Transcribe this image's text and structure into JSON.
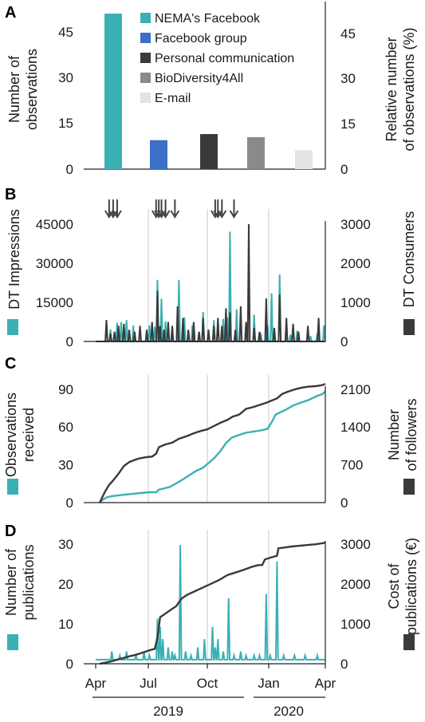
{
  "colors": {
    "teal": "#3bb0b4",
    "dark": "#3a3a3a",
    "blue": "#3b6fc8",
    "gray": "#8a8a8a",
    "light": "#e3e3e3",
    "grid": "#c9c9c9"
  },
  "x_axis": {
    "month_ticks": [
      "Apr",
      "Jul",
      "Oct",
      "Jan",
      "Apr"
    ],
    "years": [
      "2019",
      "2020"
    ]
  },
  "chart_data": [
    {
      "panel": "A",
      "type": "bar",
      "categories": [
        "NEMA's Facebook",
        "Facebook group",
        "Personal communication",
        "BioDiversity4All",
        "E-mail"
      ],
      "values": [
        51,
        9.5,
        11.5,
        10.5,
        6.2
      ],
      "colors": [
        "#3bb0b4",
        "#3b6fc8",
        "#3a3a3a",
        "#8a8a8a",
        "#e3e3e3"
      ],
      "ylabel": "Number of observations",
      "ylabel_right": "Relative number of observations (%)",
      "yticks": [
        "0",
        "15",
        "30",
        "45"
      ],
      "yticks_right": [
        "0",
        "15",
        "30",
        "45"
      ],
      "ylim": [
        0,
        51
      ],
      "legend_position": "top-right"
    },
    {
      "panel": "B",
      "type": "line",
      "ylabel": "DT Impressions",
      "ylabel_right": "DT Consumers",
      "yticks": [
        "0",
        "15000",
        "30000",
        "45000"
      ],
      "yticks_right": [
        "0",
        "1000",
        "2000",
        "3000"
      ],
      "ylim": [
        0,
        48000
      ],
      "ylim_right": [
        0,
        3200
      ],
      "arrows_days": [
        10,
        13,
        16,
        45,
        47,
        49,
        52,
        59,
        89,
        91,
        94,
        103
      ],
      "series": [
        {
          "color": "#3bb0b4",
          "axis": "left",
          "spikes": [
            [
              11,
              4500
            ],
            [
              16,
              7000
            ],
            [
              19,
              7200
            ],
            [
              23,
              8000
            ],
            [
              28,
              6000
            ],
            [
              40,
              6000
            ],
            [
              44,
              5500
            ],
            [
              46,
              23000
            ],
            [
              49,
              16000
            ],
            [
              52,
              7500
            ],
            [
              57,
              5000
            ],
            [
              62,
              23000
            ],
            [
              66,
              9000
            ],
            [
              72,
              6000
            ],
            [
              80,
              11000
            ],
            [
              88,
              8000
            ],
            [
              95,
              8500
            ],
            [
              98,
              9000
            ],
            [
              100,
              41000
            ],
            [
              105,
              12000
            ],
            [
              112,
              7000
            ],
            [
              118,
              10000
            ],
            [
              123,
              3000
            ],
            [
              128,
              6000
            ],
            [
              131,
              18000
            ],
            [
              137,
              25000
            ],
            [
              142,
              4000
            ],
            [
              145,
              2500
            ],
            [
              150,
              4000
            ],
            [
              160,
              2000
            ],
            [
              165,
              3000
            ],
            [
              170,
              6000
            ]
          ]
        },
        {
          "color": "#3a3a3a",
          "axis": "right",
          "spikes": [
            [
              8,
              550
            ],
            [
              11,
              200
            ],
            [
              14,
              250
            ],
            [
              17,
              400
            ],
            [
              21,
              450
            ],
            [
              25,
              300
            ],
            [
              29,
              250
            ],
            [
              33,
              400
            ],
            [
              38,
              300
            ],
            [
              42,
              500
            ],
            [
              46,
              1300
            ],
            [
              48,
              400
            ],
            [
              51,
              300
            ],
            [
              54,
              500
            ],
            [
              57,
              400
            ],
            [
              61,
              900
            ],
            [
              65,
              600
            ],
            [
              69,
              300
            ],
            [
              73,
              500
            ],
            [
              77,
              250
            ],
            [
              80,
              600
            ],
            [
              84,
              300
            ],
            [
              88,
              400
            ],
            [
              91,
              600
            ],
            [
              94,
              400
            ],
            [
              97,
              850
            ],
            [
              100,
              750
            ],
            [
              104,
              300
            ],
            [
              108,
              900
            ],
            [
              112,
              500
            ],
            [
              114,
              3000
            ],
            [
              118,
              350
            ],
            [
              122,
              250
            ],
            [
              127,
              1100
            ],
            [
              133,
              350
            ],
            [
              137,
              1200
            ],
            [
              142,
              600
            ],
            [
              147,
              450
            ],
            [
              151,
              250
            ],
            [
              158,
              400
            ],
            [
              166,
              600
            ]
          ]
        }
      ]
    },
    {
      "panel": "C",
      "type": "line",
      "ylabel": "Observations received",
      "ylabel_right": "Number of followers",
      "yticks": [
        "0",
        "30",
        "60",
        "90"
      ],
      "yticks_right": [
        "0",
        "700",
        "1400",
        "2100"
      ],
      "ylim": [
        0,
        95
      ],
      "ylim_right": [
        0,
        2217
      ],
      "series": [
        {
          "color": "#3bb0b4",
          "axis": "left",
          "points": [
            [
              3,
              0
            ],
            [
              5,
              2
            ],
            [
              8,
              4
            ],
            [
              12,
              5
            ],
            [
              20,
              6
            ],
            [
              30,
              7
            ],
            [
              40,
              8
            ],
            [
              45,
              8
            ],
            [
              47,
              10
            ],
            [
              55,
              12
            ],
            [
              62,
              16
            ],
            [
              68,
              20
            ],
            [
              74,
              24
            ],
            [
              80,
              27
            ],
            [
              88,
              34
            ],
            [
              93,
              40
            ],
            [
              97,
              46
            ],
            [
              101,
              50
            ],
            [
              106,
              52
            ],
            [
              112,
              54
            ],
            [
              118,
              55
            ],
            [
              124,
              56
            ],
            [
              128,
              57
            ],
            [
              131,
              62
            ],
            [
              134,
              68
            ],
            [
              138,
              70
            ],
            [
              142,
              72
            ],
            [
              147,
              75
            ],
            [
              152,
              77
            ],
            [
              158,
              79
            ],
            [
              164,
              82
            ],
            [
              169,
              84
            ],
            [
              171,
              86
            ]
          ]
        },
        {
          "color": "#3a3a3a",
          "axis": "right",
          "points": [
            [
              3,
              0
            ],
            [
              5,
              100
            ],
            [
              7,
              200
            ],
            [
              10,
              320
            ],
            [
              13,
              400
            ],
            [
              17,
              520
            ],
            [
              21,
              660
            ],
            [
              25,
              730
            ],
            [
              29,
              770
            ],
            [
              33,
              800
            ],
            [
              38,
              820
            ],
            [
              42,
              830
            ],
            [
              45,
              880
            ],
            [
              47,
              1000
            ],
            [
              52,
              1050
            ],
            [
              57,
              1080
            ],
            [
              62,
              1150
            ],
            [
              68,
              1200
            ],
            [
              73,
              1250
            ],
            [
              78,
              1290
            ],
            [
              83,
              1320
            ],
            [
              88,
              1380
            ],
            [
              93,
              1440
            ],
            [
              98,
              1490
            ],
            [
              102,
              1550
            ],
            [
              107,
              1590
            ],
            [
              112,
              1690
            ],
            [
              117,
              1720
            ],
            [
              122,
              1760
            ],
            [
              127,
              1800
            ],
            [
              131,
              1840
            ],
            [
              135,
              1880
            ],
            [
              139,
              1960
            ],
            [
              143,
              2000
            ],
            [
              148,
              2040
            ],
            [
              153,
              2070
            ],
            [
              158,
              2090
            ],
            [
              164,
              2100
            ],
            [
              169,
              2120
            ],
            [
              171,
              2140
            ]
          ]
        }
      ]
    },
    {
      "panel": "D",
      "type": "line",
      "ylabel": "Number of publications",
      "ylabel_right": "Cost of publications (€)",
      "yticks": [
        "0",
        "10",
        "20",
        "30"
      ],
      "yticks_right": [
        "0",
        "1000",
        "2000",
        "3000"
      ],
      "ylim": [
        0,
        30
      ],
      "ylim_right": [
        0,
        3300
      ],
      "series": [
        {
          "color": "#3bb0b4",
          "axis": "left",
          "spikes": [
            [
              12,
              3
            ],
            [
              18,
              2
            ],
            [
              23,
              3
            ],
            [
              30,
              2
            ],
            [
              36,
              3
            ],
            [
              40,
              2
            ],
            [
              46,
              11
            ],
            [
              48,
              9
            ],
            [
              50,
              6
            ],
            [
              54,
              4
            ],
            [
              57,
              3
            ],
            [
              59,
              2
            ],
            [
              63,
              29
            ],
            [
              67,
              3
            ],
            [
              71,
              2
            ],
            [
              76,
              4
            ],
            [
              81,
              6
            ],
            [
              87,
              9
            ],
            [
              89,
              4
            ],
            [
              91,
              6
            ],
            [
              95,
              3
            ],
            [
              99,
              16
            ],
            [
              103,
              2
            ],
            [
              108,
              3
            ],
            [
              112,
              2
            ],
            [
              118,
              2
            ],
            [
              122,
              2
            ],
            [
              127,
              17
            ],
            [
              130,
              2
            ],
            [
              135,
              25
            ],
            [
              140,
              2
            ],
            [
              148,
              2
            ],
            [
              156,
              2
            ],
            [
              165,
              2
            ]
          ],
          "base": 1
        },
        {
          "color": "#3a3a3a",
          "axis": "right",
          "points": [
            [
              3,
              0
            ],
            [
              10,
              50
            ],
            [
              15,
              100
            ],
            [
              20,
              150
            ],
            [
              25,
              200
            ],
            [
              30,
              240
            ],
            [
              35,
              300
            ],
            [
              40,
              360
            ],
            [
              44,
              400
            ],
            [
              46,
              700
            ],
            [
              48,
              1250
            ],
            [
              52,
              1350
            ],
            [
              56,
              1450
            ],
            [
              60,
              1550
            ],
            [
              62,
              1650
            ],
            [
              64,
              1750
            ],
            [
              68,
              1850
            ],
            [
              74,
              1950
            ],
            [
              80,
              2050
            ],
            [
              86,
              2150
            ],
            [
              92,
              2250
            ],
            [
              98,
              2380
            ],
            [
              104,
              2450
            ],
            [
              110,
              2520
            ],
            [
              116,
              2600
            ],
            [
              121,
              2650
            ],
            [
              124,
              2650
            ],
            [
              126,
              2800
            ],
            [
              130,
              2850
            ],
            [
              135,
              2900
            ],
            [
              136,
              3100
            ],
            [
              140,
              3120
            ],
            [
              146,
              3150
            ],
            [
              152,
              3170
            ],
            [
              158,
              3190
            ],
            [
              164,
              3210
            ],
            [
              171,
              3250
            ]
          ]
        }
      ]
    }
  ]
}
